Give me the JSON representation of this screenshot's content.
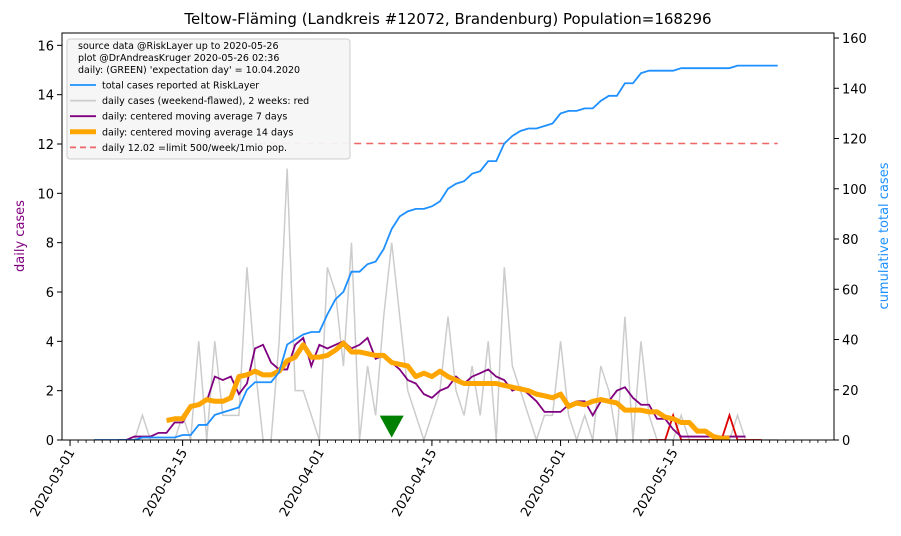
{
  "chart_data": {
    "type": "line",
    "title": "Teltow-Fläming (Landkreis #12072, Brandenburg) Population=168296",
    "ylabel_left": "daily cases",
    "ylabel_right": "cumulative total cases",
    "ylim_left": [
      0,
      16.5
    ],
    "ylim_right": [
      0,
      162
    ],
    "yticks_left": [
      "0",
      "2",
      "4",
      "6",
      "8",
      "10",
      "12",
      "14",
      "16"
    ],
    "yticks_right": [
      "0",
      "20",
      "40",
      "60",
      "80",
      "100",
      "120",
      "140",
      "160"
    ],
    "xticks": [
      "2020-03-01",
      "2020-03-15",
      "2020-04-01",
      "2020-04-15",
      "2020-05-01",
      "2020-05-15"
    ],
    "xlim_dates": [
      "2020-02-29",
      "2020-06-04"
    ],
    "legend_placement": "top-left",
    "grid": false,
    "legend": {
      "info_lines": [
        "source data @RiskLayer up to 2020-05-26",
        "plot @DrAndreasKruger 2020-05-26 02:36",
        "daily: (GREEN) 'expectation day' = 10.04.2020"
      ],
      "entries": [
        {
          "label": "total cases reported at RiskLayer",
          "color": "#1e90ff",
          "style": "solid"
        },
        {
          "label": "daily cases (weekend-flawed), 2 weeks: red",
          "color": "#cccccc",
          "style": "solid"
        },
        {
          "label": "daily: centered moving average 7 days",
          "color": "#800080",
          "style": "solid"
        },
        {
          "label": "daily: centered moving average 14 days",
          "color": "#ffa500",
          "style": "thick"
        },
        {
          "label": "daily 12.02 =limit 500/week/1mio pop.",
          "color": "#ee6666",
          "style": "dashed"
        }
      ]
    },
    "limit_line": {
      "value": 12.02,
      "x_start": "2020-03-05",
      "x_end": "2020-05-28"
    },
    "expectation_day": {
      "date": "2020-04-10",
      "value": 0.5,
      "color": "#008000"
    },
    "red_segment_start": "2020-05-12",
    "series": [
      {
        "name": "total cases reported at RiskLayer",
        "axis": "right",
        "color": "#1e90ff",
        "start": "2020-03-04",
        "values": [
          0,
          0,
          0,
          0,
          0,
          0,
          1,
          1,
          1,
          1,
          1,
          2,
          2,
          6,
          6,
          10,
          11,
          12,
          13,
          20,
          23,
          23,
          23,
          27,
          38,
          40,
          42,
          43,
          43,
          50,
          56,
          59,
          67,
          67,
          70,
          71,
          76,
          84,
          89,
          91,
          92,
          92,
          93,
          95,
          100,
          102,
          103,
          106,
          107,
          111,
          111,
          118,
          121,
          123,
          124,
          124,
          125,
          126,
          130,
          131,
          131,
          132,
          132,
          135,
          137,
          137,
          142,
          142,
          146,
          147,
          147,
          147,
          147,
          148,
          148,
          148,
          148,
          148,
          148,
          148,
          149,
          149,
          149,
          149,
          149,
          149
        ]
      },
      {
        "name": "daily cases (weekend-flawed), 2 weeks: red",
        "axis": "left",
        "color": "#cccccc",
        "start": "2020-03-04",
        "values": [
          0,
          0,
          0,
          0,
          0,
          0,
          1,
          0,
          0,
          0,
          0,
          1,
          0,
          4,
          0,
          4,
          1,
          1,
          1,
          7,
          3,
          0,
          0,
          4,
          11,
          2,
          2,
          1,
          0,
          7,
          6,
          3,
          8,
          0,
          3,
          1,
          5,
          8,
          5,
          2,
          1,
          0,
          1,
          2,
          5,
          2,
          1,
          3,
          1,
          4,
          0,
          7,
          3,
          2,
          1,
          0,
          1,
          1,
          4,
          1,
          0,
          1,
          0,
          3,
          2,
          0,
          5,
          0,
          4,
          1,
          0,
          0,
          0,
          1,
          0,
          0,
          0,
          0,
          0,
          0,
          1,
          0,
          0,
          0,
          0,
          0
        ],
        "red_values": [
          0,
          0,
          0,
          1,
          0,
          0,
          0,
          0,
          0,
          0,
          1,
          0,
          0,
          0,
          0
        ]
      },
      {
        "name": "daily: centered moving average 7 days",
        "axis": "left",
        "color": "#800080",
        "start": "2020-03-07",
        "values": [
          0,
          0,
          0.14,
          0.14,
          0.14,
          0.29,
          0.29,
          0.71,
          0.71,
          1.29,
          1.43,
          1.57,
          2.57,
          2.43,
          2.57,
          1.86,
          2.29,
          3.71,
          3.86,
          3.14,
          2.86,
          2.86,
          3.86,
          4.14,
          3.0,
          3.86,
          3.71,
          3.86,
          4.0,
          3.71,
          3.86,
          4.14,
          3.29,
          3.43,
          3.14,
          2.86,
          2.43,
          2.29,
          1.86,
          1.71,
          2.0,
          2.14,
          2.57,
          2.29,
          2.57,
          2.71,
          2.86,
          2.57,
          2.43,
          2.0,
          2.14,
          1.86,
          1.57,
          1.14,
          1.14,
          1.14,
          1.43,
          1.57,
          1.57,
          1.0,
          1.57,
          1.57,
          2.0,
          2.14,
          1.71,
          1.43,
          1.43,
          0.86,
          0.86,
          0.43,
          0.14,
          0.14,
          0.14,
          0.14,
          0.14,
          0.14,
          0.14,
          0.14,
          0.14
        ]
      },
      {
        "name": "daily: centered moving average 14 days",
        "axis": "left",
        "color": "#ffa500",
        "start": "2020-03-13",
        "values": [
          0.79,
          0.86,
          0.86,
          1.36,
          1.43,
          1.64,
          1.57,
          1.57,
          1.71,
          2.57,
          2.64,
          2.79,
          2.64,
          2.64,
          2.79,
          3.21,
          3.36,
          3.86,
          3.36,
          3.36,
          3.43,
          3.64,
          3.93,
          3.57,
          3.57,
          3.5,
          3.43,
          3.43,
          3.14,
          3.07,
          3.0,
          2.57,
          2.71,
          2.57,
          2.79,
          2.57,
          2.43,
          2.29,
          2.29,
          2.29,
          2.29,
          2.29,
          2.21,
          2.14,
          2.07,
          2.0,
          1.86,
          1.79,
          1.71,
          1.86,
          1.36,
          1.5,
          1.43,
          1.57,
          1.64,
          1.57,
          1.5,
          1.21,
          1.21,
          1.21,
          1.14,
          1.14,
          0.93,
          0.86,
          0.71,
          0.71,
          0.36,
          0.36,
          0.14,
          0.07,
          0.07
        ]
      }
    ]
  }
}
